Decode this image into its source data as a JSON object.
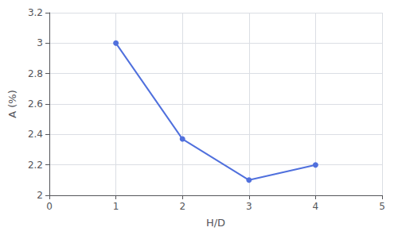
{
  "chart_data": {
    "type": "line",
    "x": [
      1,
      2,
      3,
      4
    ],
    "values": [
      3.0,
      2.37,
      2.1,
      2.2
    ],
    "xlim": [
      0,
      5
    ],
    "ylim": [
      2.0,
      3.2
    ],
    "xticks": [
      0,
      1,
      2,
      3,
      4,
      5
    ],
    "yticks": [
      2,
      2.2,
      2.4,
      2.6,
      2.8,
      3,
      3.2
    ],
    "xlabel": "H/D",
    "ylabel": "A (%)",
    "marker": "circle",
    "grid": true
  }
}
